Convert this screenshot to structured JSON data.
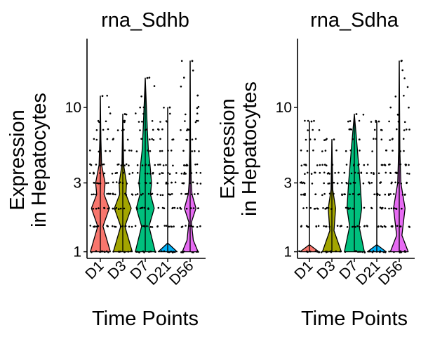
{
  "colors": {
    "D1": "#F8766D",
    "D3": "#A3A500",
    "D7": "#00BF7D",
    "D21": "#00B0F6",
    "D56": "#E76BF3",
    "outline": "#000000",
    "points": "#000000"
  },
  "chart_data": [
    {
      "type": "violin",
      "title": "rna_Sdhb",
      "xlabel": "Time Points",
      "ylabel": [
        "Expression",
        "in Hepatocytes"
      ],
      "y_scale": "log",
      "y_ticks": [
        1,
        3,
        10
      ],
      "ylim": [
        0.9,
        30
      ],
      "categories": [
        "D1",
        "D3",
        "D7",
        "D21",
        "D56"
      ],
      "series": [
        {
          "group": "D1",
          "max": 12,
          "levels": [
            {
              "y": 1,
              "w": 0.95
            },
            {
              "y": 1.5,
              "w": 0.25
            },
            {
              "y": 2,
              "w": 0.85
            },
            {
              "y": 2.5,
              "w": 0.35
            },
            {
              "y": 3,
              "w": 0.45
            },
            {
              "y": 4,
              "w": 0.12
            },
            {
              "y": 6,
              "w": 0.05
            },
            {
              "y": 12,
              "w": 0.0
            }
          ]
        },
        {
          "group": "D3",
          "max": 9,
          "levels": [
            {
              "y": 1,
              "w": 0.9
            },
            {
              "y": 1.5,
              "w": 0.2
            },
            {
              "y": 2,
              "w": 0.8
            },
            {
              "y": 2.5,
              "w": 0.3
            },
            {
              "y": 3,
              "w": 0.35
            },
            {
              "y": 4,
              "w": 0.08
            },
            {
              "y": 9,
              "w": 0.0
            }
          ]
        },
        {
          "group": "D7",
          "max": 16,
          "levels": [
            {
              "y": 1,
              "w": 0.95
            },
            {
              "y": 1.5,
              "w": 0.35
            },
            {
              "y": 2,
              "w": 0.85
            },
            {
              "y": 2.5,
              "w": 0.5
            },
            {
              "y": 3,
              "w": 0.6
            },
            {
              "y": 4,
              "w": 0.45
            },
            {
              "y": 5,
              "w": 0.3
            },
            {
              "y": 7,
              "w": 0.2
            },
            {
              "y": 16,
              "w": 0.0
            }
          ]
        },
        {
          "group": "D21",
          "max": 10,
          "levels": [
            {
              "y": 1,
              "w": 0.9
            },
            {
              "y": 1.15,
              "w": 0.0
            },
            {
              "y": 10,
              "w": 0.0
            }
          ]
        },
        {
          "group": "D56",
          "max": 21,
          "levels": [
            {
              "y": 1,
              "w": 0.75
            },
            {
              "y": 1.2,
              "w": 0.3
            },
            {
              "y": 1.6,
              "w": 0.12
            },
            {
              "y": 2,
              "w": 0.55
            },
            {
              "y": 2.5,
              "w": 0.18
            },
            {
              "y": 3,
              "w": 0.1
            },
            {
              "y": 5,
              "w": 0.04
            },
            {
              "y": 21,
              "w": 0.0
            }
          ]
        }
      ],
      "points_max": [
        12,
        9,
        16,
        10,
        21
      ]
    },
    {
      "type": "violin",
      "title": "rna_Sdha",
      "xlabel": "Time Points",
      "ylabel": [
        "Expression",
        "in Hepatocytes"
      ],
      "y_scale": "log",
      "y_ticks": [
        1,
        3,
        10
      ],
      "ylim": [
        0.9,
        30
      ],
      "categories": [
        "D1",
        "D3",
        "D7",
        "D21",
        "D56"
      ],
      "series": [
        {
          "group": "D1",
          "max": 8,
          "levels": [
            {
              "y": 1,
              "w": 0.9
            },
            {
              "y": 1.12,
              "w": 0.0
            },
            {
              "y": 8,
              "w": 0.0
            }
          ]
        },
        {
          "group": "D3",
          "max": 6,
          "levels": [
            {
              "y": 1,
              "w": 0.9
            },
            {
              "y": 1.4,
              "w": 0.2
            },
            {
              "y": 2,
              "w": 0.35
            },
            {
              "y": 2.7,
              "w": 0.08
            },
            {
              "y": 6,
              "w": 0.0
            }
          ]
        },
        {
          "group": "D7",
          "max": 9,
          "levels": [
            {
              "y": 1,
              "w": 0.95
            },
            {
              "y": 1.5,
              "w": 0.45
            },
            {
              "y": 2,
              "w": 0.7
            },
            {
              "y": 3,
              "w": 0.55
            },
            {
              "y": 5,
              "w": 0.3
            },
            {
              "y": 9,
              "w": 0.0
            }
          ]
        },
        {
          "group": "D21",
          "max": 8,
          "levels": [
            {
              "y": 1,
              "w": 0.9
            },
            {
              "y": 1.12,
              "w": 0.0
            },
            {
              "y": 8,
              "w": 0.0
            }
          ]
        },
        {
          "group": "D56",
          "max": 21,
          "levels": [
            {
              "y": 1,
              "w": 0.85
            },
            {
              "y": 1.3,
              "w": 0.25
            },
            {
              "y": 2,
              "w": 0.55
            },
            {
              "y": 3,
              "w": 0.15
            },
            {
              "y": 5,
              "w": 0.06
            },
            {
              "y": 21,
              "w": 0.0
            }
          ]
        }
      ],
      "points_max": [
        8,
        6,
        9,
        8,
        21
      ]
    }
  ]
}
